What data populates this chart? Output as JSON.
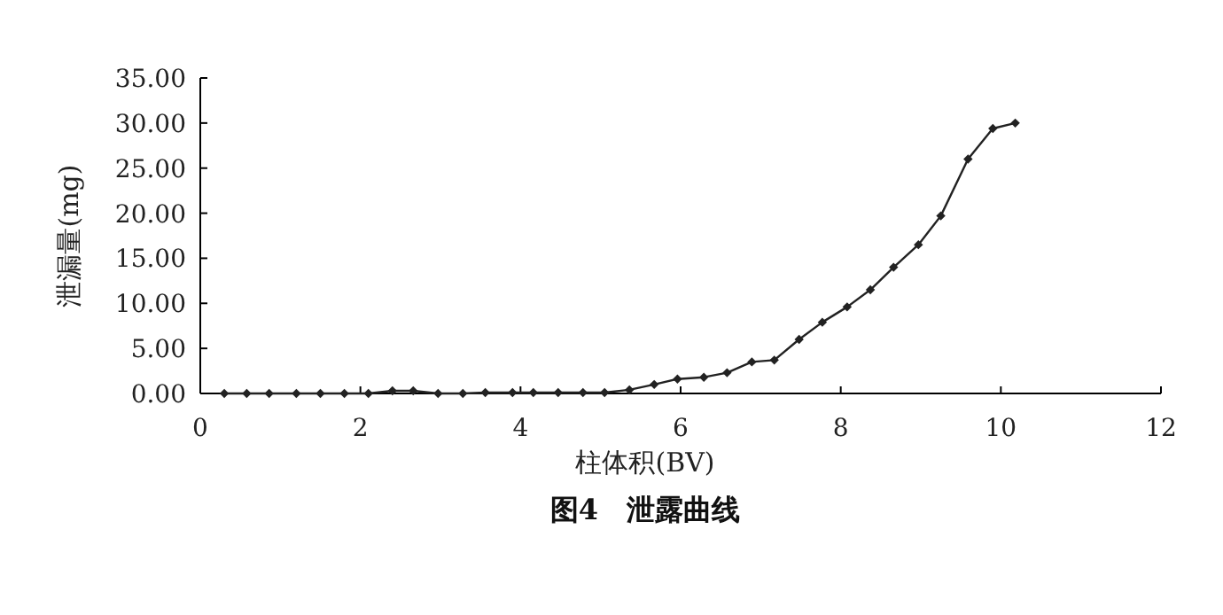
{
  "chart_data": {
    "type": "line",
    "title": "图4　泄露曲线",
    "xlabel": "柱体积(BV)",
    "ylabel": "泄漏量(mg)",
    "x": [
      0.3,
      0.58,
      0.86,
      1.2,
      1.5,
      1.8,
      2.1,
      2.4,
      2.66,
      2.97,
      3.28,
      3.56,
      3.9,
      4.16,
      4.47,
      4.78,
      5.05,
      5.36,
      5.67,
      5.96,
      6.29,
      6.58,
      6.89,
      7.17,
      7.48,
      7.77,
      8.08,
      8.37,
      8.66,
      8.97,
      9.25,
      9.59,
      9.9,
      10.18
    ],
    "series": [
      {
        "color": "#222222",
        "values": [
          0,
          0,
          0,
          0,
          0,
          0,
          0,
          0.3,
          0.3,
          0,
          0,
          0.1,
          0.1,
          0.1,
          0.1,
          0.1,
          0.1,
          0.4,
          1.0,
          1.6,
          1.8,
          2.3,
          3.5,
          3.7,
          6.0,
          7.9,
          9.6,
          11.5,
          14.0,
          16.5,
          19.7,
          26.0,
          29.4,
          30.0
        ]
      }
    ],
    "xlim": [
      0,
      12
    ],
    "xticks": [
      0,
      2,
      4,
      6,
      8,
      10,
      12
    ],
    "ylim": [
      0,
      35
    ],
    "yticks": [
      {
        "value": 0,
        "label": "0.00"
      },
      {
        "value": 5,
        "label": "5.00"
      },
      {
        "value": 10,
        "label": "10.00"
      },
      {
        "value": 15,
        "label": "15.00"
      },
      {
        "value": 20,
        "label": "20.00"
      },
      {
        "value": 25,
        "label": "25.00"
      },
      {
        "value": 30,
        "label": "30.00"
      },
      {
        "value": 35,
        "label": "35.00"
      }
    ],
    "marker": "diamond",
    "line_style": "solid",
    "grid": false
  }
}
